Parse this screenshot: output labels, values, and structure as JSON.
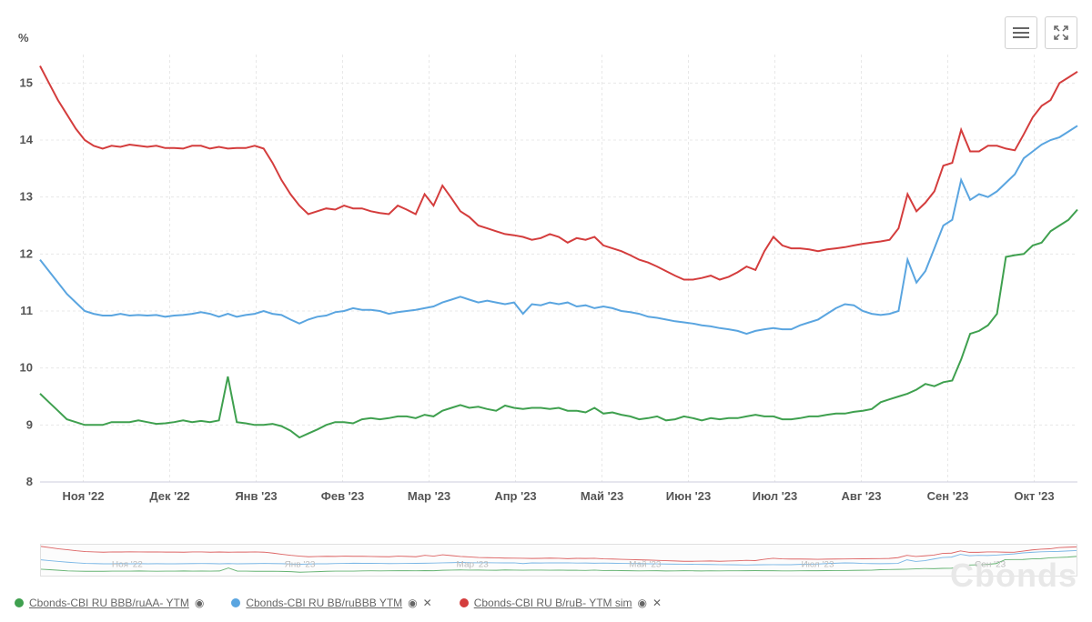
{
  "chart": {
    "type": "line",
    "y_label": "%",
    "ylim": [
      8,
      15.5
    ],
    "yticks": [
      8,
      9,
      10,
      11,
      12,
      13,
      14,
      15
    ],
    "xticks": [
      "Ноя '22",
      "Дек '22",
      "Янв '23",
      "Фев '23",
      "Мар '23",
      "Апр '23",
      "Май '23",
      "Июн '23",
      "Июл '23",
      "Авг '23",
      "Сен '23",
      "Окт '23"
    ],
    "background_color": "#ffffff",
    "grid_color": "#e8e8e8",
    "grid_dash": "3 3",
    "line_width": 2,
    "tick_fontsize": 13,
    "tick_color": "#555555",
    "series": [
      {
        "name": "Cbonds-CBI RU BBB/ruAA- YTM",
        "color": "#3fa04f",
        "data": [
          9.55,
          9.4,
          9.25,
          9.1,
          9.05,
          9.0,
          9.0,
          9.0,
          9.05,
          9.05,
          9.05,
          9.08,
          9.05,
          9.02,
          9.03,
          9.05,
          9.08,
          9.05,
          9.07,
          9.05,
          9.08,
          9.85,
          9.05,
          9.03,
          9.0,
          9.0,
          9.02,
          8.98,
          8.9,
          8.78,
          8.85,
          8.92,
          9.0,
          9.05,
          9.05,
          9.03,
          9.1,
          9.12,
          9.1,
          9.12,
          9.15,
          9.15,
          9.12,
          9.18,
          9.15,
          9.25,
          9.3,
          9.35,
          9.3,
          9.32,
          9.28,
          9.25,
          9.34,
          9.3,
          9.28,
          9.3,
          9.3,
          9.28,
          9.3,
          9.25,
          9.25,
          9.22,
          9.3,
          9.2,
          9.22,
          9.18,
          9.15,
          9.1,
          9.12,
          9.15,
          9.08,
          9.1,
          9.15,
          9.12,
          9.08,
          9.12,
          9.1,
          9.12,
          9.12,
          9.15,
          9.18,
          9.15,
          9.15,
          9.1,
          9.1,
          9.12,
          9.15,
          9.15,
          9.18,
          9.2,
          9.2,
          9.23,
          9.25,
          9.28,
          9.4,
          9.45,
          9.5,
          9.55,
          9.62,
          9.72,
          9.68,
          9.75,
          9.78,
          10.15,
          10.6,
          10.65,
          10.75,
          10.95,
          11.95,
          11.98,
          12.0,
          12.15,
          12.2,
          12.4,
          12.5,
          12.6,
          12.78
        ]
      },
      {
        "name": "Cbonds-CBI RU BB/ruBBB YTM",
        "color": "#5aa5e0",
        "data": [
          11.9,
          11.7,
          11.5,
          11.3,
          11.15,
          11.0,
          10.95,
          10.92,
          10.92,
          10.95,
          10.92,
          10.93,
          10.92,
          10.93,
          10.9,
          10.92,
          10.93,
          10.95,
          10.98,
          10.95,
          10.9,
          10.95,
          10.9,
          10.93,
          10.95,
          11.0,
          10.95,
          10.93,
          10.85,
          10.78,
          10.85,
          10.9,
          10.92,
          10.98,
          11.0,
          11.05,
          11.02,
          11.02,
          11.0,
          10.95,
          10.98,
          11.0,
          11.02,
          11.05,
          11.08,
          11.15,
          11.2,
          11.25,
          11.2,
          11.15,
          11.18,
          11.15,
          11.12,
          11.15,
          10.95,
          11.12,
          11.1,
          11.15,
          11.12,
          11.15,
          11.08,
          11.1,
          11.05,
          11.08,
          11.05,
          11.0,
          10.98,
          10.95,
          10.9,
          10.88,
          10.85,
          10.82,
          10.8,
          10.78,
          10.75,
          10.73,
          10.7,
          10.68,
          10.65,
          10.6,
          10.65,
          10.68,
          10.7,
          10.68,
          10.68,
          10.75,
          10.8,
          10.85,
          10.95,
          11.05,
          11.12,
          11.1,
          11.0,
          10.95,
          10.93,
          10.95,
          11.0,
          11.9,
          11.5,
          11.7,
          12.1,
          12.5,
          12.6,
          13.3,
          12.95,
          13.05,
          13.0,
          13.1,
          13.25,
          13.4,
          13.68,
          13.8,
          13.92,
          14.0,
          14.05,
          14.15,
          14.25
        ]
      },
      {
        "name": "Cbonds-CBI RU B/ruB- YTM sim",
        "color": "#d43d3d",
        "data": [
          15.3,
          15.0,
          14.7,
          14.45,
          14.2,
          14.0,
          13.9,
          13.85,
          13.9,
          13.88,
          13.92,
          13.9,
          13.88,
          13.9,
          13.86,
          13.86,
          13.85,
          13.9,
          13.9,
          13.85,
          13.88,
          13.85,
          13.86,
          13.86,
          13.9,
          13.85,
          13.6,
          13.3,
          13.05,
          12.85,
          12.7,
          12.75,
          12.8,
          12.78,
          12.85,
          12.8,
          12.8,
          12.75,
          12.72,
          12.7,
          12.85,
          12.78,
          12.7,
          13.05,
          12.85,
          13.2,
          12.98,
          12.75,
          12.65,
          12.5,
          12.45,
          12.4,
          12.35,
          12.33,
          12.3,
          12.25,
          12.28,
          12.35,
          12.3,
          12.2,
          12.28,
          12.25,
          12.3,
          12.15,
          12.1,
          12.05,
          11.98,
          11.9,
          11.85,
          11.78,
          11.7,
          11.62,
          11.55,
          11.55,
          11.58,
          11.62,
          11.55,
          11.6,
          11.68,
          11.78,
          11.72,
          12.05,
          12.3,
          12.15,
          12.1,
          12.1,
          12.08,
          12.05,
          12.08,
          12.1,
          12.12,
          12.15,
          12.18,
          12.2,
          12.22,
          12.25,
          12.45,
          13.05,
          12.75,
          12.9,
          13.1,
          13.55,
          13.6,
          14.18,
          13.8,
          13.8,
          13.9,
          13.9,
          13.85,
          13.82,
          14.1,
          14.4,
          14.6,
          14.7,
          15.0,
          15.1,
          15.2
        ]
      }
    ]
  },
  "navigator": {
    "xticks": [
      "Ноя '22",
      "Янв '23",
      "Мар '23",
      "Май '23",
      "Июл '23",
      "Сен '23"
    ]
  },
  "legend": {
    "items": [
      {
        "label": "Cbonds-CBI RU BBB/ruAA- YTM",
        "color": "#3fa04f",
        "has_close": false
      },
      {
        "label": "Cbonds-CBI RU BB/ruBBB YTM",
        "color": "#5aa5e0",
        "has_close": true
      },
      {
        "label": "Cbonds-CBI RU B/ruB- YTM sim",
        "color": "#d43d3d",
        "has_close": true
      }
    ]
  },
  "watermark": "Cbonds",
  "icons": {
    "menu": "menu-icon",
    "fullscreen": "fullscreen-icon",
    "eye": "◉",
    "close": "✕"
  }
}
